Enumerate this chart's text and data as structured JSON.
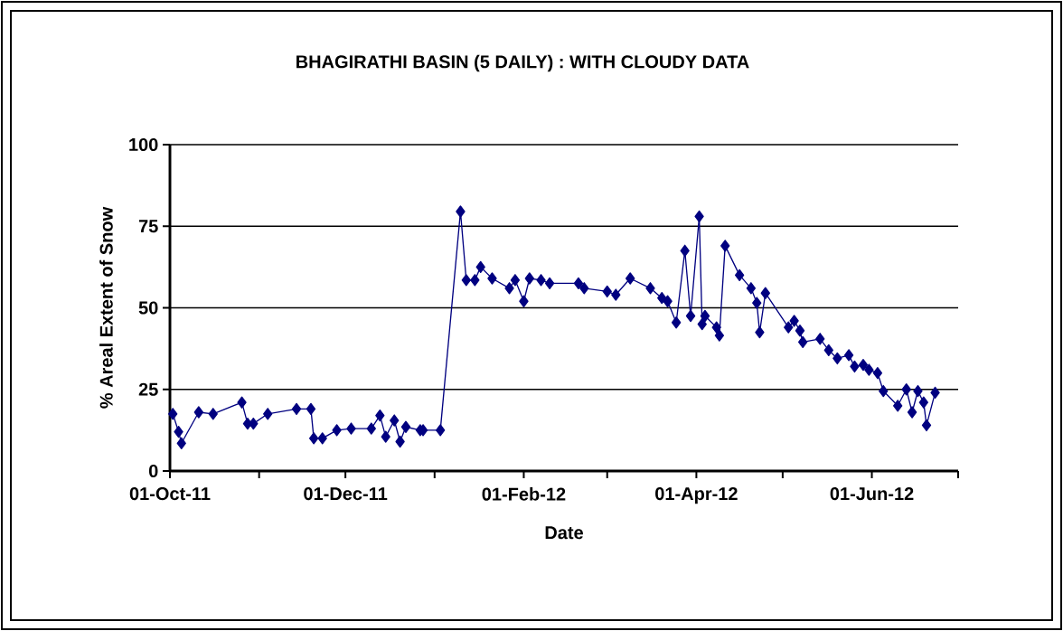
{
  "chart_data": {
    "type": "line",
    "title": "BHAGIRATHI BASIN (5 DAILY) : WITH CLOUDY DATA",
    "xlabel": "Date",
    "ylabel": "% Areal Extent of Snow",
    "x": [
      "2011-10-02",
      "2011-10-04",
      "2011-10-05",
      "2011-10-11",
      "2011-10-16",
      "2011-10-26",
      "2011-10-28",
      "2011-10-30",
      "2011-11-04",
      "2011-11-14",
      "2011-11-19",
      "2011-11-20",
      "2011-11-23",
      "2011-11-28",
      "2011-12-03",
      "2011-12-10",
      "2011-12-13",
      "2011-12-15",
      "2011-12-18",
      "2011-12-20",
      "2011-12-22",
      "2011-12-27",
      "2011-12-28",
      "2012-01-03",
      "2012-01-10",
      "2012-01-12",
      "2012-01-15",
      "2012-01-17",
      "2012-01-21",
      "2012-01-27",
      "2012-01-29",
      "2012-02-01",
      "2012-02-03",
      "2012-02-07",
      "2012-02-10",
      "2012-02-20",
      "2012-02-22",
      "2012-03-01",
      "2012-03-04",
      "2012-03-09",
      "2012-03-16",
      "2012-03-20",
      "2012-03-22",
      "2012-03-25",
      "2012-03-28",
      "2012-03-30",
      "2012-04-02",
      "2012-04-03",
      "2012-04-04",
      "2012-04-08",
      "2012-04-09",
      "2012-04-11",
      "2012-04-16",
      "2012-04-20",
      "2012-04-22",
      "2012-04-23",
      "2012-04-25",
      "2012-05-03",
      "2012-05-05",
      "2012-05-07",
      "2012-05-08",
      "2012-05-14",
      "2012-05-17",
      "2012-05-20",
      "2012-05-24",
      "2012-05-26",
      "2012-05-29",
      "2012-05-31",
      "2012-06-03",
      "2012-06-05",
      "2012-06-10",
      "2012-06-13",
      "2012-06-15",
      "2012-06-17",
      "2012-06-19",
      "2012-06-20",
      "2012-06-23"
    ],
    "series": [
      {
        "color": "#000080",
        "values": [
          17.5,
          12,
          8.5,
          18,
          17.5,
          21,
          14.5,
          14.5,
          17.5,
          19,
          19,
          10,
          10,
          12.5,
          13,
          13,
          17,
          10.5,
          15.5,
          9,
          13.5,
          12.5,
          12.5,
          12.5,
          79.5,
          58.5,
          58.5,
          62.5,
          59,
          56,
          58.5,
          52,
          59,
          58.5,
          57.5,
          57.5,
          56,
          55,
          54,
          59,
          56,
          53,
          52,
          45.5,
          67.5,
          47.5,
          78,
          45,
          47.5,
          44,
          41.5,
          69,
          60,
          56,
          51.5,
          42.5,
          54.5,
          44,
          46,
          43,
          39.5,
          40.5,
          37,
          34.5,
          35.5,
          32,
          32.5,
          31,
          30,
          24.5,
          20,
          25,
          18,
          24.5,
          21,
          14,
          24
        ]
      }
    ],
    "xlim": [
      "2011-10-01",
      "2012-07-01"
    ],
    "xticks": [
      {
        "value": "2011-10-01",
        "label": "01-Oct-11"
      },
      {
        "value": "2011-11-01",
        "label": null
      },
      {
        "value": "2011-12-01",
        "label": "01-Dec-11"
      },
      {
        "value": "2012-01-01",
        "label": null
      },
      {
        "value": "2012-02-01",
        "label": "01-Feb-12"
      },
      {
        "value": "2012-03-01",
        "label": null
      },
      {
        "value": "2012-04-01",
        "label": "01-Apr-12"
      },
      {
        "value": "2012-05-01",
        "label": null
      },
      {
        "value": "2012-06-01",
        "label": "01-Jun-12"
      },
      {
        "value": "2012-07-01",
        "label": null
      }
    ],
    "ylim": [
      0,
      100
    ],
    "yticks": [
      0,
      25,
      50,
      75,
      100
    ],
    "grid": "y",
    "marker": "diamond",
    "line_style": "solid"
  }
}
